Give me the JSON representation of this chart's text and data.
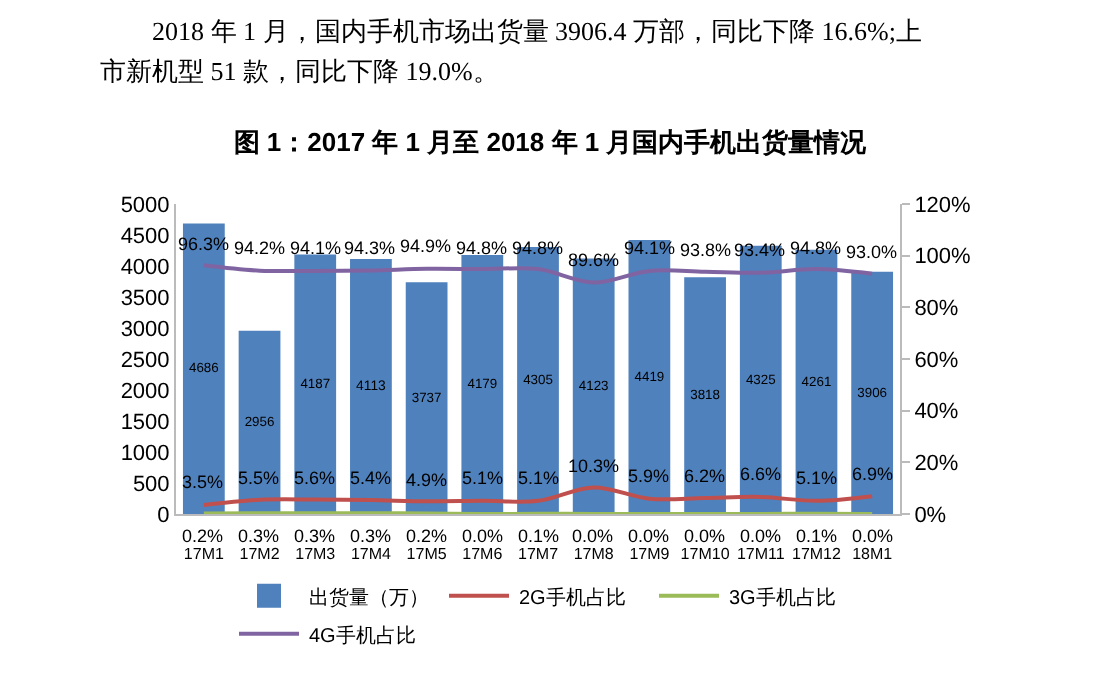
{
  "chart_data": {
    "type": "bar",
    "title": "图 1：2017 年 1 月至 2018 年 1 月国内手机出货量情况",
    "annotations": [
      "2018 年 1 月，国内手机市场出货量 3906.4 万部，同比下降 16.6%;上市新机型 51 款，同比下降 19.0%。"
    ],
    "categories": [
      "17M1",
      "17M2",
      "17M3",
      "17M4",
      "17M5",
      "17M6",
      "17M7",
      "17M8",
      "17M9",
      "17M10",
      "17M11",
      "17M12",
      "18M1"
    ],
    "series": [
      {
        "name": "出货量（万）",
        "color": "#4f81bd",
        "values": [
          4686,
          2956,
          4187,
          4113,
          3737,
          4179,
          4305,
          4123,
          4419,
          3818,
          4325,
          4261,
          3906
        ],
        "value_labels": [
          "4686",
          "2956",
          "4187",
          "4113",
          "3737",
          "4179",
          "4305",
          "4123",
          "4419",
          "3818",
          "4325",
          "4261",
          "3906"
        ]
      },
      {
        "name": "2G手机占比",
        "type": "line",
        "axis": "y2",
        "color": "#c0504d",
        "values": [
          3.5,
          5.5,
          5.6,
          5.4,
          4.9,
          5.1,
          5.1,
          10.3,
          5.9,
          6.2,
          6.6,
          5.1,
          6.9
        ],
        "value_labels": [
          "3.5%",
          "5.5%",
          "5.6%",
          "5.4%",
          "4.9%",
          "5.1%",
          "5.1%",
          "10.3%",
          "5.9%",
          "6.2%",
          "6.6%",
          "5.1%",
          "6.9%"
        ]
      },
      {
        "name": "3G手机占比",
        "type": "line",
        "axis": "y2",
        "color": "#9bbb59",
        "values": [
          0.2,
          0.3,
          0.3,
          0.3,
          0.2,
          0.0,
          0.1,
          0.0,
          0.0,
          0.0,
          0.0,
          0.1,
          0.0
        ],
        "value_labels": [
          "0.2%",
          "0.3%",
          "0.3%",
          "0.3%",
          "0.2%",
          "0.0%",
          "0.1%",
          "0.0%",
          "0.0%",
          "0.0%",
          "0.0%",
          "0.1%",
          "0.0%"
        ]
      },
      {
        "name": "4G手机占比",
        "type": "line",
        "axis": "y2",
        "color": "#8064a2",
        "values": [
          96.3,
          94.2,
          94.1,
          94.3,
          94.9,
          94.8,
          94.8,
          89.6,
          94.1,
          93.8,
          93.4,
          94.8,
          93.0
        ],
        "value_labels": [
          "96.3%",
          "94.2%",
          "94.1%",
          "94.3%",
          "94.9%",
          "94.8%",
          "94.8%",
          "89.6%",
          "94.1%",
          "93.8%",
          "93.4%",
          "94.8%",
          "93.0%"
        ]
      }
    ],
    "ylim": [
      0,
      5000
    ],
    "yticks": [
      0,
      500,
      1000,
      1500,
      2000,
      2500,
      3000,
      3500,
      4000,
      4500,
      5000
    ],
    "y2lim": [
      0,
      120
    ],
    "y2ticks": [
      {
        "value": 0,
        "label": "0%"
      },
      {
        "value": 20,
        "label": "20%"
      },
      {
        "value": 40,
        "label": "40%"
      },
      {
        "value": 60,
        "label": "60%"
      },
      {
        "value": 80,
        "label": "80%"
      },
      {
        "value": 100,
        "label": "100%"
      },
      {
        "value": 120,
        "label": "120%"
      }
    ],
    "grid": false,
    "legend": "bottom",
    "marker": "none",
    "line_style": "solid"
  }
}
